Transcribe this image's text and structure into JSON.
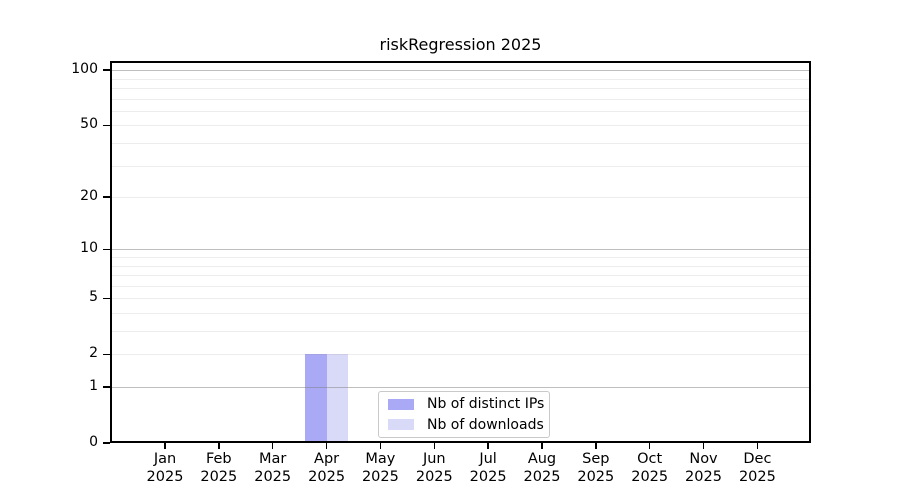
{
  "chart_data": {
    "type": "bar",
    "title": "riskRegression 2025",
    "x_categories": [
      {
        "month": "Jan",
        "year": "2025"
      },
      {
        "month": "Feb",
        "year": "2025"
      },
      {
        "month": "Mar",
        "year": "2025"
      },
      {
        "month": "Apr",
        "year": "2025"
      },
      {
        "month": "May",
        "year": "2025"
      },
      {
        "month": "Jun",
        "year": "2025"
      },
      {
        "month": "Jul",
        "year": "2025"
      },
      {
        "month": "Aug",
        "year": "2025"
      },
      {
        "month": "Sep",
        "year": "2025"
      },
      {
        "month": "Oct",
        "year": "2025"
      },
      {
        "month": "Nov",
        "year": "2025"
      },
      {
        "month": "Dec",
        "year": "2025"
      }
    ],
    "series": [
      {
        "name": "Nb of distinct IPs",
        "color": "#a9a9f5",
        "values": [
          0,
          0,
          0,
          2,
          0,
          0,
          0,
          0,
          0,
          0,
          0,
          0
        ]
      },
      {
        "name": "Nb of downloads",
        "color": "#d9d9f8",
        "values": [
          0,
          0,
          0,
          2,
          0,
          0,
          0,
          0,
          0,
          0,
          0,
          0
        ]
      }
    ],
    "y_axis": {
      "scale": "log10(1+y)",
      "ticks": [
        0,
        1,
        2,
        5,
        10,
        20,
        50,
        100
      ],
      "max": 112,
      "major_gridlines": [
        1,
        10,
        100
      ],
      "minor_gridlines": [
        2,
        3,
        4,
        5,
        6,
        7,
        8,
        9,
        20,
        30,
        40,
        50,
        60,
        70,
        80,
        90
      ]
    },
    "legend": {
      "position": "bottom-center"
    },
    "grid": true
  },
  "colors": {
    "spine": "#000000",
    "text": "#000000",
    "background": "#ffffff"
  }
}
